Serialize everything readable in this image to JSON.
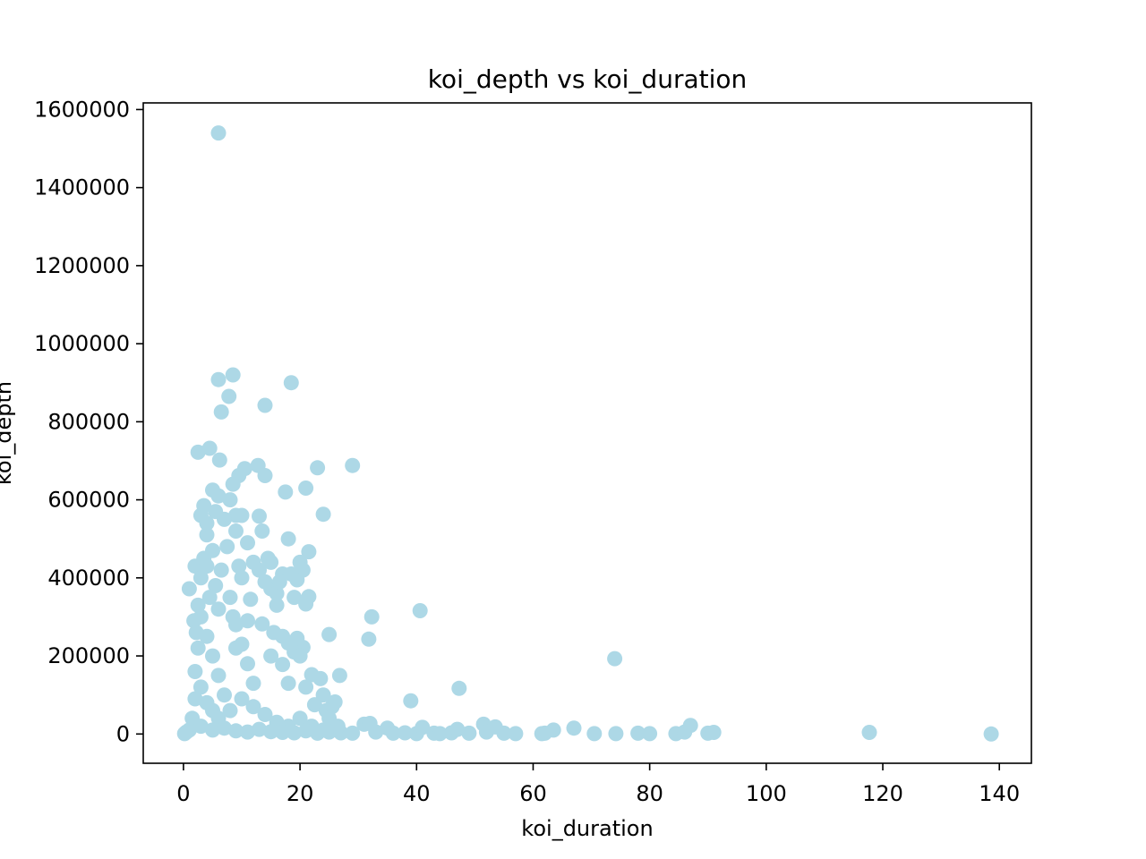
{
  "chart_data": {
    "type": "scatter",
    "title": "koi_depth vs koi_duration",
    "xlabel": "koi_duration",
    "ylabel": "koi_depth",
    "xlim": [
      -6.9,
      145.5
    ],
    "ylim": [
      -75000,
      1617000
    ],
    "xticks": [
      0,
      20,
      40,
      60,
      80,
      100,
      120,
      140
    ],
    "xtick_labels": [
      "0",
      "20",
      "40",
      "60",
      "80",
      "100",
      "120",
      "140"
    ],
    "yticks": [
      0,
      200000,
      400000,
      600000,
      800000,
      1000000,
      1200000,
      1400000,
      1600000
    ],
    "ytick_labels": [
      "0",
      "200000",
      "400000",
      "600000",
      "800000",
      "1000000",
      "1200000",
      "1400000",
      "1600000"
    ],
    "grid": false,
    "marker_color": "#add8e6",
    "series": [
      {
        "points": [
          [
            6,
            1540000
          ],
          [
            6,
            908000
          ],
          [
            8.5,
            920000
          ],
          [
            18.5,
            900000
          ],
          [
            7.8,
            865000
          ],
          [
            6.5,
            825000
          ],
          [
            14,
            842000
          ],
          [
            2.5,
            722000
          ],
          [
            4.5,
            732000
          ],
          [
            6.2,
            702000
          ],
          [
            12.8,
            688000
          ],
          [
            10.5,
            680000
          ],
          [
            9.5,
            662000
          ],
          [
            14,
            662000
          ],
          [
            23,
            682000
          ],
          [
            29,
            688000
          ],
          [
            8.5,
            640000
          ],
          [
            5,
            625000
          ],
          [
            21,
            630000
          ],
          [
            17.5,
            620000
          ],
          [
            3.5,
            585000
          ],
          [
            3,
            560000
          ],
          [
            9,
            560000
          ],
          [
            13,
            558000
          ],
          [
            24,
            563000
          ],
          [
            18,
            500000
          ],
          [
            13.5,
            520000
          ],
          [
            4,
            510000
          ],
          [
            11,
            490000
          ],
          [
            21.5,
            467000
          ],
          [
            2,
            430000
          ],
          [
            20,
            440000
          ],
          [
            17,
            410000
          ],
          [
            20.5,
            420000
          ],
          [
            19.5,
            395000
          ],
          [
            1,
            372000
          ],
          [
            5.5,
            380000
          ],
          [
            15,
            372000
          ],
          [
            11.5,
            345000
          ],
          [
            19,
            350000
          ],
          [
            21.5,
            352000
          ],
          [
            21,
            333000
          ],
          [
            16,
            330000
          ],
          [
            32.3,
            300000
          ],
          [
            40.6,
            316000
          ],
          [
            13.5,
            282000
          ],
          [
            25,
            255000
          ],
          [
            31.8,
            243000
          ],
          [
            19.5,
            245000
          ],
          [
            18,
            233000
          ],
          [
            20.5,
            222000
          ],
          [
            9,
            220000
          ],
          [
            15,
            200000
          ],
          [
            17,
            178000
          ],
          [
            22,
            152000
          ],
          [
            26.8,
            150000
          ],
          [
            23.5,
            142000
          ],
          [
            18,
            130000
          ],
          [
            21,
            120000
          ],
          [
            47.3,
            117000
          ],
          [
            74,
            193000
          ],
          [
            39,
            85000
          ],
          [
            26,
            82000
          ],
          [
            24,
            100000
          ],
          [
            25.5,
            70000
          ],
          [
            3,
            300000
          ],
          [
            4,
            250000
          ],
          [
            5,
            200000
          ],
          [
            6,
            150000
          ],
          [
            7,
            100000
          ],
          [
            8,
            350000
          ],
          [
            9,
            280000
          ],
          [
            10,
            230000
          ],
          [
            11,
            180000
          ],
          [
            12,
            130000
          ],
          [
            3.5,
            450000
          ],
          [
            5,
            470000
          ],
          [
            6.5,
            420000
          ],
          [
            7.5,
            480000
          ],
          [
            9.5,
            430000
          ],
          [
            10,
            400000
          ],
          [
            12,
            440000
          ],
          [
            13,
            420000
          ],
          [
            14,
            390000
          ],
          [
            15,
            440000
          ],
          [
            16,
            360000
          ],
          [
            4.5,
            350000
          ],
          [
            6,
            320000
          ],
          [
            8.5,
            300000
          ],
          [
            11,
            290000
          ],
          [
            2,
            160000
          ],
          [
            2.5,
            220000
          ],
          [
            3,
            120000
          ],
          [
            4,
            80000
          ],
          [
            5,
            60000
          ],
          [
            6,
            40000
          ],
          [
            8,
            60000
          ],
          [
            10,
            90000
          ],
          [
            12,
            70000
          ],
          [
            14,
            50000
          ],
          [
            16,
            30000
          ],
          [
            18,
            20000
          ],
          [
            20,
            40000
          ],
          [
            22,
            20000
          ],
          [
            24,
            10000
          ],
          [
            1.5,
            40000
          ],
          [
            2,
            90000
          ],
          [
            1,
            10000
          ],
          [
            0.5,
            5000
          ],
          [
            0.2,
            1000
          ],
          [
            3,
            20000
          ],
          [
            5,
            10000
          ],
          [
            7,
            15000
          ],
          [
            9,
            8000
          ],
          [
            11,
            5000
          ],
          [
            13,
            12000
          ],
          [
            15,
            6000
          ],
          [
            17,
            4000
          ],
          [
            19,
            3000
          ],
          [
            21,
            8000
          ],
          [
            23,
            2000
          ],
          [
            25,
            5000
          ],
          [
            27,
            3000
          ],
          [
            29,
            2000
          ],
          [
            31,
            25000
          ],
          [
            32,
            27000
          ],
          [
            33,
            5000
          ],
          [
            35,
            15000
          ],
          [
            36,
            2000
          ],
          [
            38,
            3000
          ],
          [
            40,
            1000
          ],
          [
            41,
            17000
          ],
          [
            43,
            2000
          ],
          [
            44,
            1000
          ],
          [
            46,
            3000
          ],
          [
            47,
            12000
          ],
          [
            49,
            2000
          ],
          [
            51.5,
            25000
          ],
          [
            52,
            5000
          ],
          [
            53.5,
            18000
          ],
          [
            55,
            2000
          ],
          [
            57,
            1000
          ],
          [
            61.5,
            1000
          ],
          [
            62,
            2000
          ],
          [
            63.5,
            10000
          ],
          [
            67,
            15000
          ],
          [
            70.5,
            1000
          ],
          [
            74.2,
            1000
          ],
          [
            78,
            2000
          ],
          [
            80,
            1000
          ],
          [
            84.5,
            1000
          ],
          [
            86,
            5000
          ],
          [
            87,
            22000
          ],
          [
            90,
            2000
          ],
          [
            91,
            4000
          ],
          [
            117.7,
            4000
          ],
          [
            138.6,
            0
          ],
          [
            9,
            520000
          ],
          [
            10,
            560000
          ],
          [
            7,
            550000
          ],
          [
            8,
            600000
          ],
          [
            5.5,
            570000
          ],
          [
            6,
            610000
          ],
          [
            4,
            540000
          ],
          [
            14.5,
            450000
          ],
          [
            16.5,
            390000
          ],
          [
            18.5,
            410000
          ],
          [
            15.5,
            260000
          ],
          [
            17,
            250000
          ],
          [
            19,
            210000
          ],
          [
            20,
            200000
          ],
          [
            22.5,
            75000
          ],
          [
            24.5,
            60000
          ],
          [
            25,
            40000
          ],
          [
            26.5,
            20000
          ],
          [
            3,
            400000
          ],
          [
            2.5,
            330000
          ],
          [
            4,
            430000
          ],
          [
            1.8,
            290000
          ],
          [
            2.2,
            260000
          ]
        ]
      }
    ]
  }
}
